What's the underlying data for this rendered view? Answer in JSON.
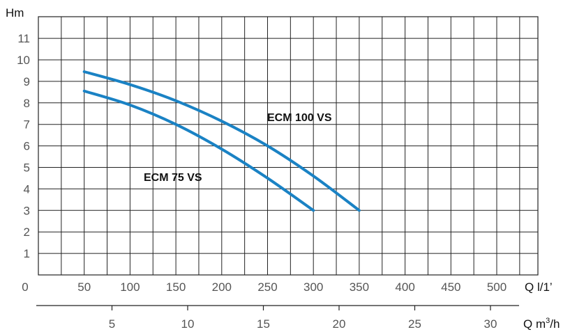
{
  "chart_data": {
    "type": "line",
    "ylabel": "Hm",
    "xlabel": "Q l/1’",
    "x2label_prefix": "Q m",
    "x2label_sup": "3",
    "x2label_suffix": "/h",
    "x_origin_label": "0",
    "xlim": [
      0,
      550
    ],
    "ylim": [
      0,
      12
    ],
    "x_ticks": [
      50,
      100,
      150,
      200,
      250,
      300,
      350,
      400,
      450,
      500
    ],
    "x2_ticks": [
      5,
      10,
      15,
      20,
      25,
      30
    ],
    "y_ticks": [
      1,
      2,
      3,
      4,
      5,
      6,
      7,
      8,
      9,
      10,
      11
    ],
    "grid": true,
    "series_color": "#1a82c4",
    "series": [
      {
        "name": "ECM 75 VS",
        "x": [
          50,
          100,
          150,
          200,
          250,
          300
        ],
        "y": [
          8.55,
          7.9,
          7.0,
          5.85,
          4.5,
          3.0
        ]
      },
      {
        "name": "ECM 100 VS",
        "x": [
          50,
          100,
          150,
          200,
          250,
          300,
          350
        ],
        "y": [
          9.45,
          8.85,
          8.1,
          7.15,
          6.0,
          4.6,
          3.0
        ]
      }
    ]
  }
}
